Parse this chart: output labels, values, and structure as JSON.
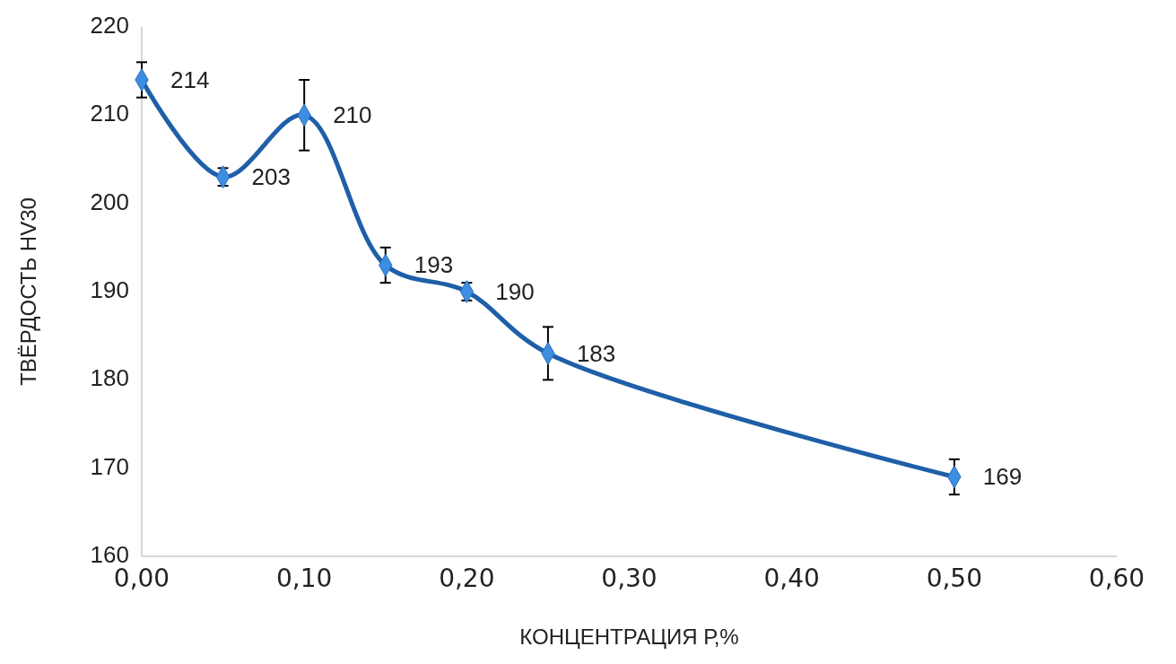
{
  "chart_data": {
    "type": "line",
    "xlabel": "КОНЦЕНТРАЦИЯ Р,%",
    "ylabel": "ТВЁРДОСТЬ HV30",
    "x": [
      0,
      0.05,
      0.1,
      0.15,
      0.2,
      0.25,
      0.5
    ],
    "series": [
      {
        "color": "#1f5fa8",
        "values": [
          214,
          203,
          210,
          193,
          190,
          183,
          169
        ],
        "errors": [
          2,
          1,
          4,
          2,
          1,
          3,
          2
        ]
      }
    ],
    "xlim": [
      0,
      0.6
    ],
    "xticks": [
      {
        "value": 0,
        "label": "0,00"
      },
      {
        "value": 0.1,
        "label": "0,10"
      },
      {
        "value": 0.2,
        "label": "0,20"
      },
      {
        "value": 0.3,
        "label": "0,30"
      },
      {
        "value": 0.4,
        "label": "0,40"
      },
      {
        "value": 0.5,
        "label": "0,50"
      },
      {
        "value": 0.6,
        "label": "0,60"
      }
    ],
    "ylim": [
      160,
      220
    ],
    "yticks": [
      160,
      170,
      180,
      190,
      200,
      210,
      220
    ],
    "grid": false,
    "marker": "diamond",
    "line_style": "solid",
    "data_labels": true
  }
}
